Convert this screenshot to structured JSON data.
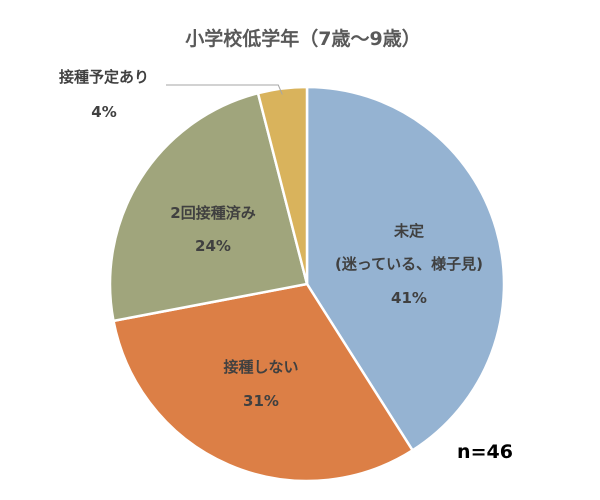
{
  "chart_data": {
    "type": "pie",
    "title": "小学校低学年（7歳～9歳）",
    "sample_size": "n=46",
    "start_angle_deg": 0,
    "direction": "clockwise",
    "legend": "none",
    "slices": [
      {
        "label_lines": [
          "未定",
          "(迷っている、様子見)"
        ],
        "value": 41,
        "value_label": "41%",
        "color": "#95b3d2"
      },
      {
        "label_lines": [
          "接種しない"
        ],
        "value": 31,
        "value_label": "31%",
        "color": "#dc7f46"
      },
      {
        "label_lines": [
          "2回接種済み"
        ],
        "value": 24,
        "value_label": "24%",
        "color": "#a0a57c"
      },
      {
        "label_lines": [
          "接種予定あり"
        ],
        "value": 4,
        "value_label": "4%",
        "color": "#d9b35c"
      }
    ]
  }
}
